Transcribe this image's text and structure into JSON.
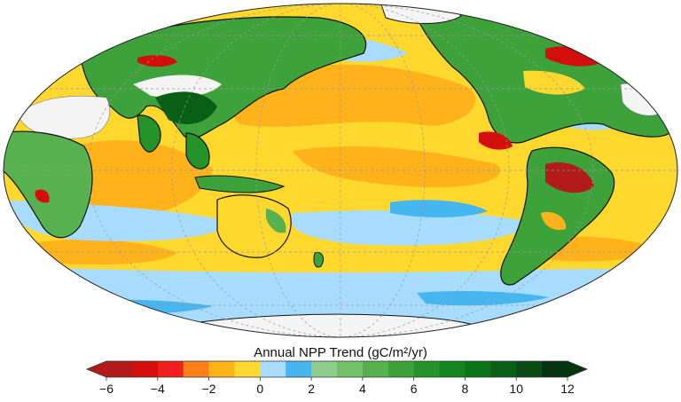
{
  "colorbar": {
    "title": "Annual NPP Trend (gC/m²/yr)",
    "bins": [
      {
        "from": -6,
        "to": -5,
        "color": "#b31b1b"
      },
      {
        "from": -5,
        "to": -4,
        "color": "#d40d0d"
      },
      {
        "from": -4,
        "to": -3,
        "color": "#f21d1d"
      },
      {
        "from": -3,
        "to": -2,
        "color": "#ff7f1a"
      },
      {
        "from": -2,
        "to": -1,
        "color": "#ffb21a"
      },
      {
        "from": -1,
        "to": 0,
        "color": "#ffd82e"
      },
      {
        "from": 0,
        "to": 1,
        "color": "#a8dcff"
      },
      {
        "from": 1,
        "to": 2,
        "color": "#45b6f0"
      },
      {
        "from": 2,
        "to": 3,
        "color": "#8fcc8a"
      },
      {
        "from": 3,
        "to": 4,
        "color": "#73c06b"
      },
      {
        "from": 4,
        "to": 5,
        "color": "#58b14f"
      },
      {
        "from": 5,
        "to": 6,
        "color": "#3da23a"
      },
      {
        "from": 6,
        "to": 7,
        "color": "#24942a"
      },
      {
        "from": 7,
        "to": 8,
        "color": "#138420"
      },
      {
        "from": 8,
        "to": 9,
        "color": "#0b731a"
      },
      {
        "from": 9,
        "to": 10,
        "color": "#0a5f17"
      },
      {
        "from": 10,
        "to": 11,
        "color": "#084b14"
      },
      {
        "from": 11,
        "to": 12,
        "color": "#053310"
      }
    ],
    "tick_values": [
      -6,
      -4,
      -2,
      0,
      2,
      4,
      6,
      8,
      10,
      12
    ],
    "tick_labels": [
      "−6",
      "−4",
      "−2",
      "0",
      "2",
      "4",
      "6",
      "8",
      "10",
      "12"
    ],
    "extend": "both"
  },
  "map": {
    "projection": "Mollweide (Pacific-centered)",
    "ocean_base_color": "#ffd82e",
    "land_no_data_color": "#f4f4f4",
    "graticule": "dashed"
  }
}
